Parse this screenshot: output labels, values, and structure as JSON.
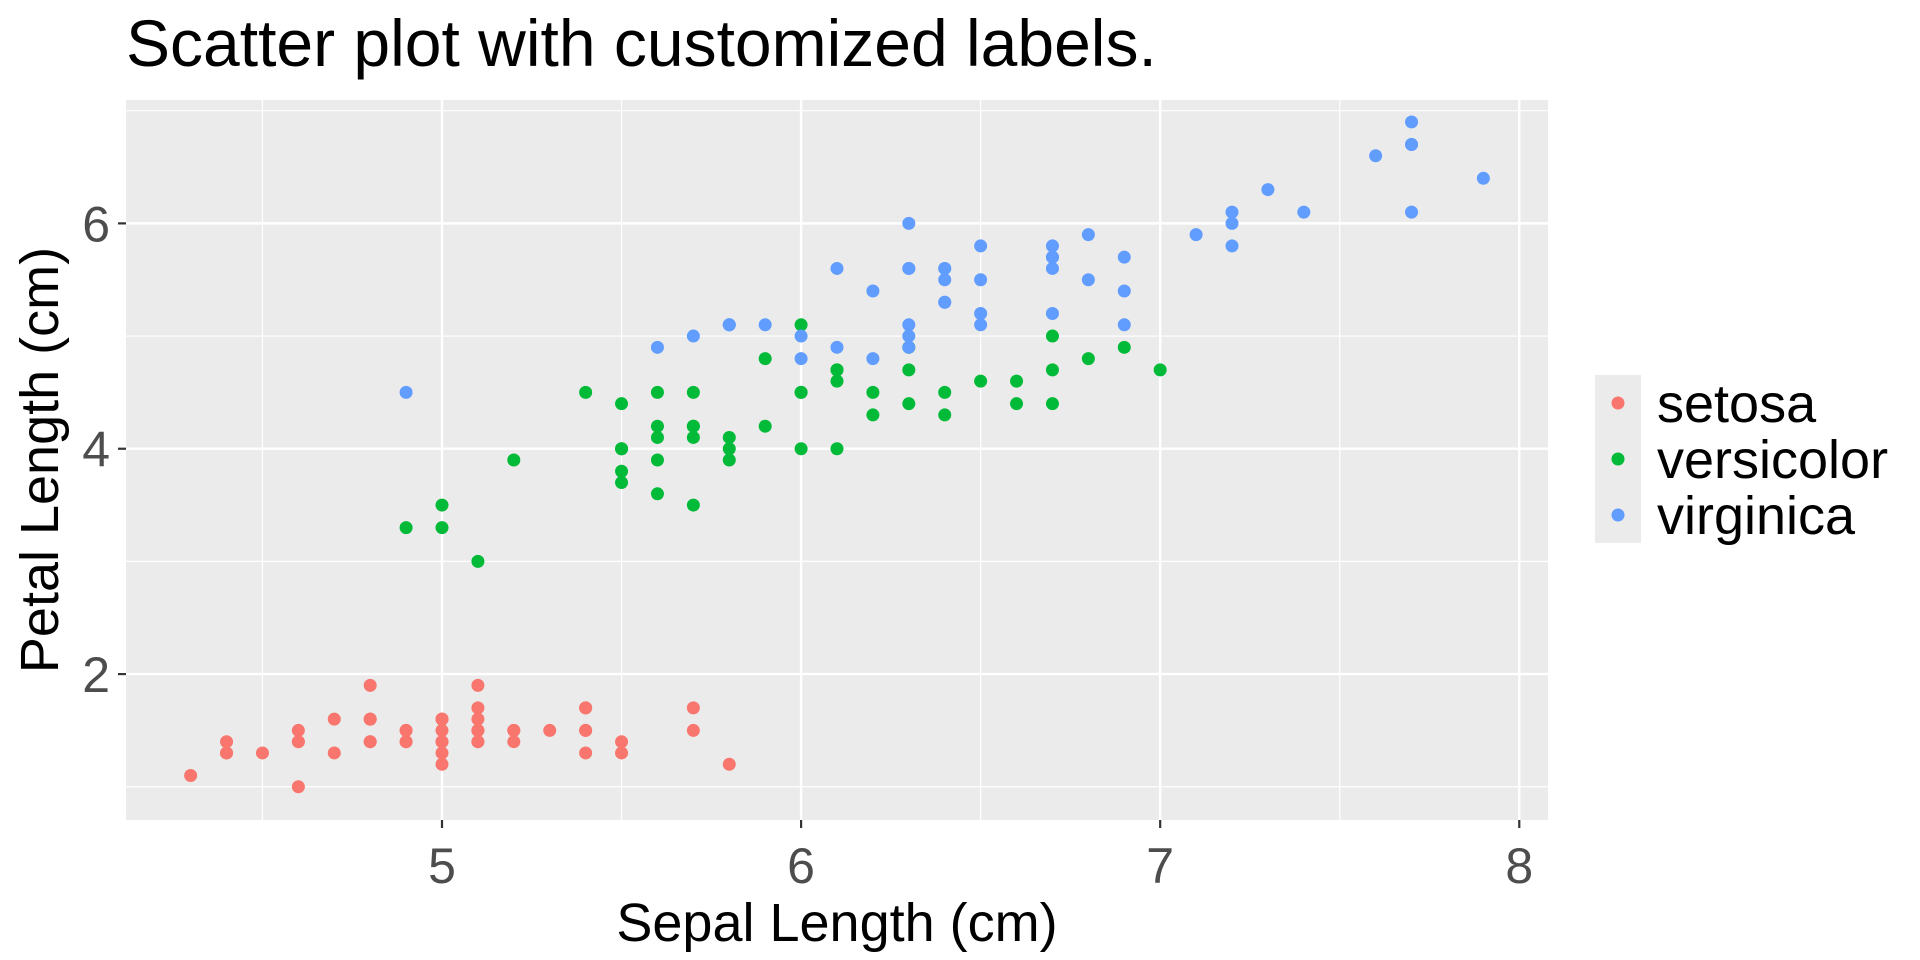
{
  "chart_data": {
    "type": "scatter",
    "title": "Scatter plot with customized labels.",
    "xlabel": "Sepal Length (cm)",
    "ylabel": "Petal Length (cm)",
    "xlim": [
      4.12,
      8.08
    ],
    "ylim": [
      0.705,
      7.095
    ],
    "x_ticks": [
      5,
      6,
      7,
      8
    ],
    "y_ticks": [
      2,
      4,
      6
    ],
    "x_minor": [
      4.5,
      5.5,
      6.5,
      7.5
    ],
    "y_minor": [
      1,
      3,
      5,
      7
    ],
    "grid": true,
    "legend_position": "right",
    "point_radius": 6.5,
    "panel_background": "#ebebeb",
    "grid_color": "#ffffff",
    "series": [
      {
        "name": "setosa",
        "color": "#f8766d",
        "points": [
          [
            5.1,
            1.4
          ],
          [
            4.9,
            1.4
          ],
          [
            4.7,
            1.3
          ],
          [
            4.6,
            1.5
          ],
          [
            5.0,
            1.4
          ],
          [
            5.4,
            1.7
          ],
          [
            4.6,
            1.4
          ],
          [
            5.0,
            1.5
          ],
          [
            4.4,
            1.4
          ],
          [
            4.9,
            1.5
          ],
          [
            5.4,
            1.5
          ],
          [
            4.8,
            1.6
          ],
          [
            4.8,
            1.4
          ],
          [
            4.3,
            1.1
          ],
          [
            5.8,
            1.2
          ],
          [
            5.7,
            1.5
          ],
          [
            5.4,
            1.3
          ],
          [
            5.1,
            1.4
          ],
          [
            5.7,
            1.7
          ],
          [
            5.1,
            1.5
          ],
          [
            5.4,
            1.7
          ],
          [
            5.1,
            1.5
          ],
          [
            4.6,
            1.0
          ],
          [
            5.1,
            1.7
          ],
          [
            4.8,
            1.9
          ],
          [
            5.0,
            1.6
          ],
          [
            5.0,
            1.6
          ],
          [
            5.2,
            1.5
          ],
          [
            5.2,
            1.4
          ],
          [
            4.7,
            1.6
          ],
          [
            4.8,
            1.6
          ],
          [
            5.4,
            1.5
          ],
          [
            5.2,
            1.5
          ],
          [
            5.5,
            1.4
          ],
          [
            4.9,
            1.5
          ],
          [
            5.0,
            1.2
          ],
          [
            5.5,
            1.3
          ],
          [
            4.9,
            1.4
          ],
          [
            4.4,
            1.3
          ],
          [
            5.1,
            1.5
          ],
          [
            5.0,
            1.3
          ],
          [
            4.5,
            1.3
          ],
          [
            4.4,
            1.3
          ],
          [
            5.0,
            1.6
          ],
          [
            5.1,
            1.9
          ],
          [
            4.8,
            1.4
          ],
          [
            5.1,
            1.6
          ],
          [
            4.6,
            1.4
          ],
          [
            5.3,
            1.5
          ],
          [
            5.0,
            1.4
          ]
        ]
      },
      {
        "name": "versicolor",
        "color": "#00ba38",
        "points": [
          [
            7.0,
            4.7
          ],
          [
            6.4,
            4.5
          ],
          [
            6.9,
            4.9
          ],
          [
            5.5,
            4.0
          ],
          [
            6.5,
            4.6
          ],
          [
            5.7,
            4.5
          ],
          [
            6.3,
            4.7
          ],
          [
            4.9,
            3.3
          ],
          [
            6.6,
            4.6
          ],
          [
            5.2,
            3.9
          ],
          [
            5.0,
            3.5
          ],
          [
            5.9,
            4.2
          ],
          [
            6.0,
            4.0
          ],
          [
            6.1,
            4.7
          ],
          [
            5.6,
            3.6
          ],
          [
            6.7,
            4.4
          ],
          [
            5.6,
            4.5
          ],
          [
            5.8,
            4.1
          ],
          [
            6.2,
            4.5
          ],
          [
            5.6,
            3.9
          ],
          [
            5.9,
            4.8
          ],
          [
            6.1,
            4.0
          ],
          [
            6.3,
            4.9
          ],
          [
            6.1,
            4.7
          ],
          [
            6.4,
            4.3
          ],
          [
            6.6,
            4.4
          ],
          [
            6.8,
            4.8
          ],
          [
            6.7,
            5.0
          ],
          [
            6.0,
            4.5
          ],
          [
            5.7,
            3.5
          ],
          [
            5.5,
            3.8
          ],
          [
            5.5,
            3.7
          ],
          [
            5.8,
            3.9
          ],
          [
            6.0,
            5.1
          ],
          [
            5.4,
            4.5
          ],
          [
            6.0,
            4.5
          ],
          [
            6.7,
            4.7
          ],
          [
            6.3,
            4.4
          ],
          [
            5.6,
            4.1
          ],
          [
            5.5,
            4.0
          ],
          [
            5.5,
            4.4
          ],
          [
            6.1,
            4.6
          ],
          [
            5.8,
            4.0
          ],
          [
            5.0,
            3.3
          ],
          [
            5.6,
            4.2
          ],
          [
            5.7,
            4.2
          ],
          [
            5.7,
            4.2
          ],
          [
            6.2,
            4.3
          ],
          [
            5.1,
            3.0
          ],
          [
            5.7,
            4.1
          ]
        ]
      },
      {
        "name": "virginica",
        "color": "#619cff",
        "points": [
          [
            6.3,
            6.0
          ],
          [
            5.8,
            5.1
          ],
          [
            7.1,
            5.9
          ],
          [
            6.3,
            5.6
          ],
          [
            6.5,
            5.8
          ],
          [
            7.6,
            6.6
          ],
          [
            4.9,
            4.5
          ],
          [
            7.3,
            6.3
          ],
          [
            6.7,
            5.8
          ],
          [
            7.2,
            6.1
          ],
          [
            6.5,
            5.1
          ],
          [
            6.4,
            5.3
          ],
          [
            6.8,
            5.5
          ],
          [
            5.7,
            5.0
          ],
          [
            5.8,
            5.1
          ],
          [
            6.4,
            5.3
          ],
          [
            6.5,
            5.5
          ],
          [
            7.7,
            6.7
          ],
          [
            7.7,
            6.9
          ],
          [
            6.0,
            5.0
          ],
          [
            6.9,
            5.7
          ],
          [
            5.6,
            4.9
          ],
          [
            7.7,
            6.7
          ],
          [
            6.3,
            4.9
          ],
          [
            6.7,
            5.7
          ],
          [
            7.2,
            6.0
          ],
          [
            6.2,
            4.8
          ],
          [
            6.1,
            4.9
          ],
          [
            6.4,
            5.6
          ],
          [
            7.2,
            5.8
          ],
          [
            7.4,
            6.1
          ],
          [
            7.9,
            6.4
          ],
          [
            6.4,
            5.6
          ],
          [
            6.3,
            5.1
          ],
          [
            6.1,
            5.6
          ],
          [
            7.7,
            6.1
          ],
          [
            6.3,
            5.6
          ],
          [
            6.4,
            5.5
          ],
          [
            6.0,
            4.8
          ],
          [
            6.9,
            5.4
          ],
          [
            6.7,
            5.6
          ],
          [
            6.9,
            5.1
          ],
          [
            5.8,
            5.1
          ],
          [
            6.8,
            5.9
          ],
          [
            6.7,
            5.7
          ],
          [
            6.7,
            5.2
          ],
          [
            6.3,
            5.0
          ],
          [
            6.5,
            5.2
          ],
          [
            6.2,
            5.4
          ],
          [
            5.9,
            5.1
          ]
        ]
      }
    ]
  }
}
